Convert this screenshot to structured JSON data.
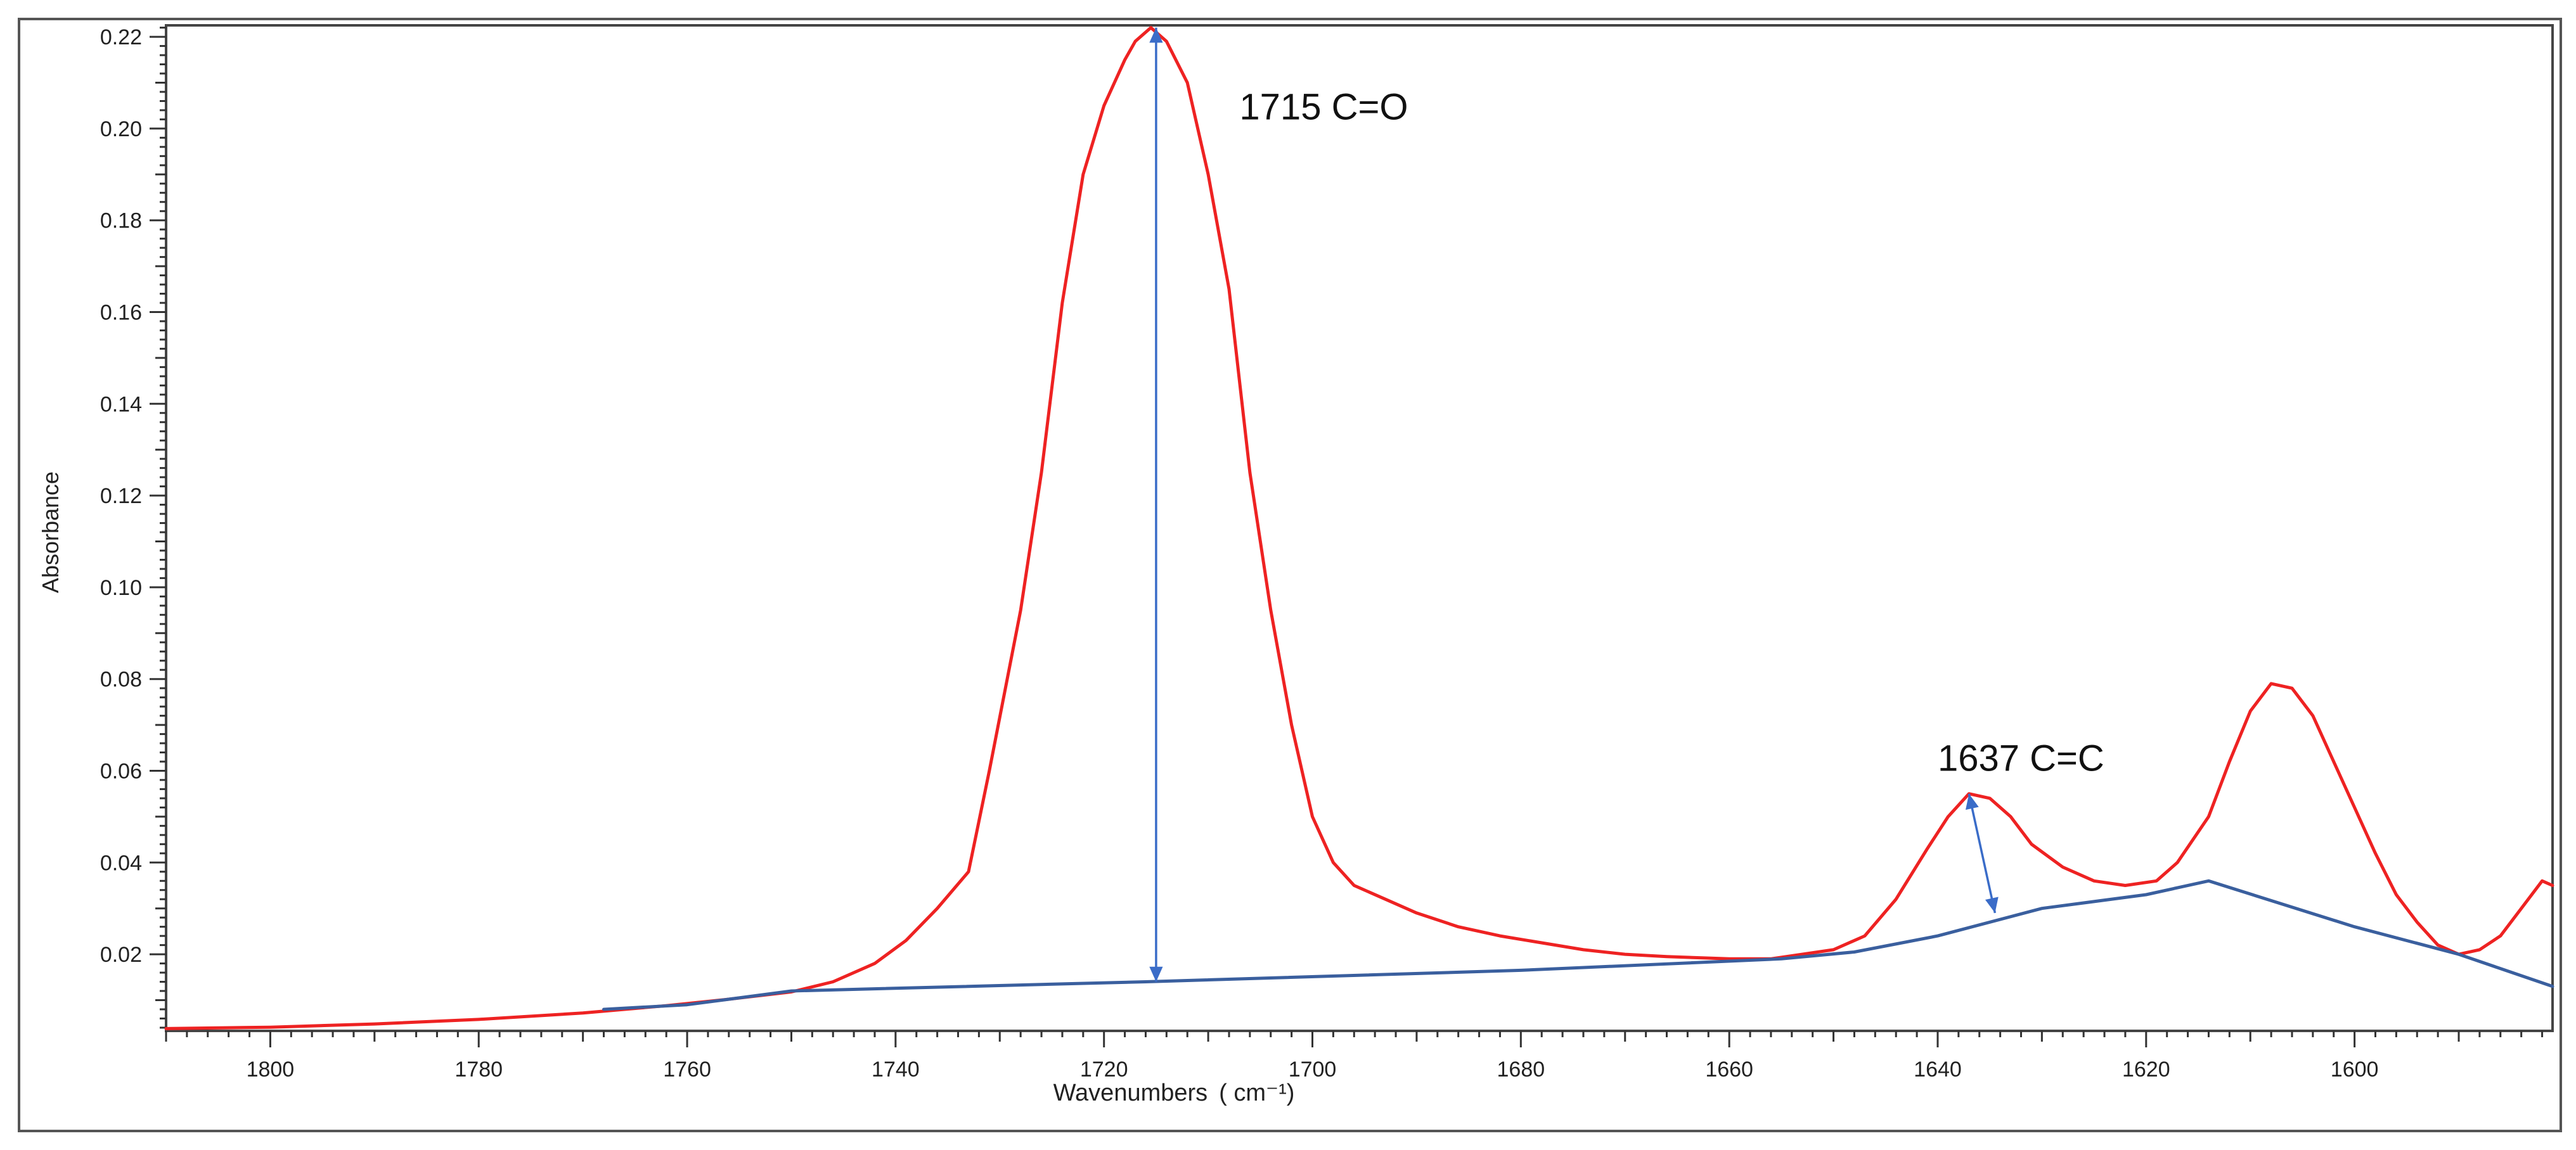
{
  "chart_data": {
    "type": "line",
    "title": "",
    "xlabel": "Wavenumbers",
    "xlabel_unit": "( cm⁻¹)",
    "ylabel": "Absorbance",
    "x_reversed": true,
    "xlim": [
      1810,
      1581
    ],
    "ylim": [
      0.0033,
      0.2225
    ],
    "x_ticks": [
      1800,
      1780,
      1760,
      1740,
      1720,
      1700,
      1680,
      1660,
      1640,
      1620,
      1600
    ],
    "y_ticks": [
      0.02,
      0.04,
      0.06,
      0.08,
      0.1,
      0.12,
      0.14,
      0.16,
      0.18,
      0.2,
      0.22
    ],
    "grid": false,
    "series": [
      {
        "name": "spectrum",
        "color": "#ee2222",
        "points": [
          [
            1810,
            0.0038
          ],
          [
            1800,
            0.0041
          ],
          [
            1790,
            0.0048
          ],
          [
            1780,
            0.0058
          ],
          [
            1770,
            0.0072
          ],
          [
            1762,
            0.0088
          ],
          [
            1756,
            0.0102
          ],
          [
            1750,
            0.0118
          ],
          [
            1746,
            0.014
          ],
          [
            1742,
            0.018
          ],
          [
            1739,
            0.023
          ],
          [
            1736,
            0.03
          ],
          [
            1733,
            0.038
          ],
          [
            1731,
            0.06
          ],
          [
            1728,
            0.095
          ],
          [
            1726,
            0.125
          ],
          [
            1724,
            0.162
          ],
          [
            1722,
            0.19
          ],
          [
            1720,
            0.205
          ],
          [
            1718,
            0.215
          ],
          [
            1717,
            0.219
          ],
          [
            1715.5,
            0.222
          ],
          [
            1714,
            0.219
          ],
          [
            1712,
            0.21
          ],
          [
            1710,
            0.19
          ],
          [
            1708,
            0.165
          ],
          [
            1706,
            0.125
          ],
          [
            1704,
            0.095
          ],
          [
            1702,
            0.07
          ],
          [
            1700,
            0.05
          ],
          [
            1698,
            0.04
          ],
          [
            1696,
            0.035
          ],
          [
            1693,
            0.032
          ],
          [
            1690,
            0.029
          ],
          [
            1686,
            0.026
          ],
          [
            1682,
            0.024
          ],
          [
            1678,
            0.0225
          ],
          [
            1674,
            0.021
          ],
          [
            1670,
            0.02
          ],
          [
            1666,
            0.0195
          ],
          [
            1660,
            0.019
          ],
          [
            1656,
            0.019
          ],
          [
            1653,
            0.02
          ],
          [
            1650,
            0.021
          ],
          [
            1647,
            0.024
          ],
          [
            1644,
            0.032
          ],
          [
            1641,
            0.043
          ],
          [
            1639,
            0.05
          ],
          [
            1637,
            0.055
          ],
          [
            1635,
            0.054
          ],
          [
            1633,
            0.05
          ],
          [
            1631,
            0.044
          ],
          [
            1628,
            0.039
          ],
          [
            1625,
            0.036
          ],
          [
            1622,
            0.035
          ],
          [
            1619,
            0.036
          ],
          [
            1617,
            0.04
          ],
          [
            1614,
            0.05
          ],
          [
            1612,
            0.062
          ],
          [
            1610,
            0.073
          ],
          [
            1608,
            0.079
          ],
          [
            1606,
            0.078
          ],
          [
            1604,
            0.072
          ],
          [
            1602,
            0.062
          ],
          [
            1600,
            0.052
          ],
          [
            1598,
            0.042
          ],
          [
            1596,
            0.033
          ],
          [
            1594,
            0.027
          ],
          [
            1592,
            0.022
          ],
          [
            1590,
            0.02
          ],
          [
            1588,
            0.021
          ],
          [
            1586,
            0.024
          ],
          [
            1584,
            0.03
          ],
          [
            1582,
            0.036
          ],
          [
            1581,
            0.035
          ]
        ]
      },
      {
        "name": "baseline",
        "color": "#3a5f9e",
        "points": [
          [
            1768,
            0.008
          ],
          [
            1760,
            0.009
          ],
          [
            1750,
            0.012
          ],
          [
            1716,
            0.014
          ],
          [
            1680,
            0.0165
          ],
          [
            1655,
            0.019
          ],
          [
            1648,
            0.0205
          ],
          [
            1640,
            0.024
          ],
          [
            1630,
            0.03
          ],
          [
            1620,
            0.033
          ],
          [
            1614,
            0.036
          ],
          [
            1600,
            0.026
          ],
          [
            1590,
            0.02
          ],
          [
            1581,
            0.013
          ]
        ]
      }
    ],
    "annotations": [
      {
        "label": "1715 C=O",
        "x": 1715,
        "y_top": 0.222,
        "y_bottom": 0.014,
        "label_x": 1707,
        "label_y": 0.202,
        "color": "#3a6cc8"
      },
      {
        "label": "1637 C=C",
        "x": 1637,
        "y_top": 0.055,
        "y_bottom": 0.029,
        "x_bottom": 1634.5,
        "label_x": 1640,
        "label_y": 0.06,
        "color": "#3a6cc8"
      }
    ]
  }
}
